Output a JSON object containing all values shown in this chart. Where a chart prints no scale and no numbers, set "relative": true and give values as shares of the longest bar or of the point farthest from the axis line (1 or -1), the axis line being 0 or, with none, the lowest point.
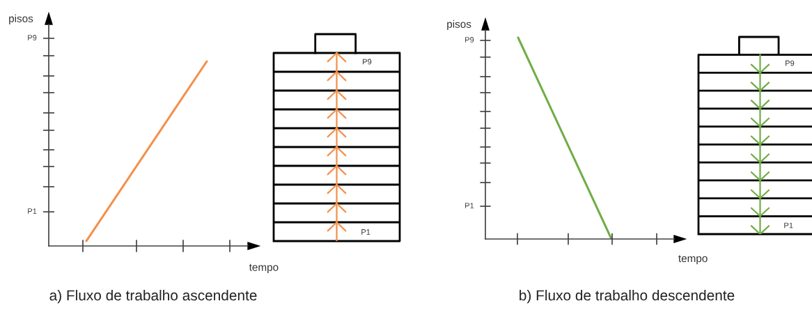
{
  "chart_data": [
    {
      "type": "line",
      "title": "a) Fluxo de trabalho ascendente",
      "xlabel": "tempo",
      "ylabel": "pisos",
      "categories": [
        null,
        null
      ],
      "series": [
        {
          "color": "#f4904a",
          "values": [
            0.027,
            1
          ]
        }
      ],
      "relative": true,
      "grid": false,
      "annotations": [
        "P9",
        "P1",
        "P9",
        "P1"
      ]
    },
    {
      "type": "line",
      "title": "b) Fluxo de trabalho descendente",
      "xlabel": "tempo",
      "ylabel": "pisos",
      "categories": [
        null,
        null
      ],
      "series": [
        {
          "color": "#70ad47",
          "values": [
            1,
            0
          ]
        }
      ],
      "relative": true,
      "grid": false,
      "annotations": [
        "P9",
        "P1",
        "P9",
        "P1"
      ]
    }
  ]
}
